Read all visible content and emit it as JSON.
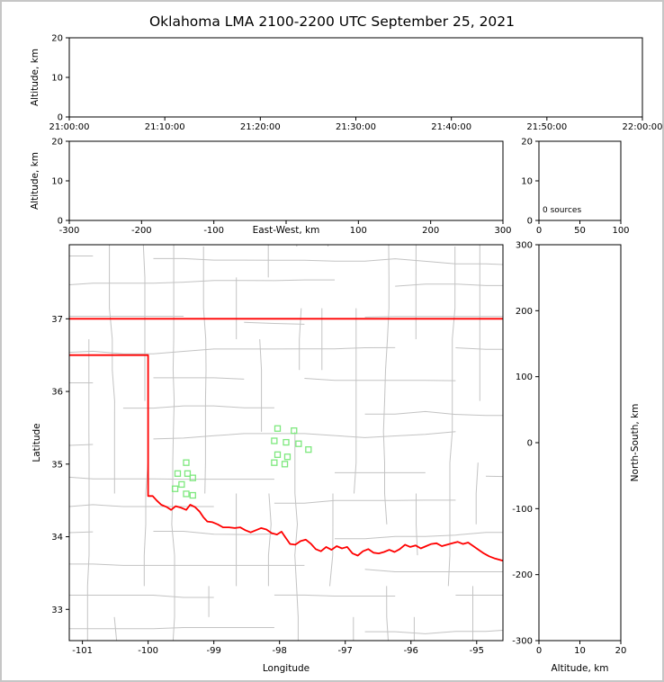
{
  "title": "Oklahoma LMA 2100-2200 UTC September 25, 2021",
  "chart_data": [
    {
      "id": "time_height",
      "type": "scatter",
      "description": "Altitude versus time panel (empty, no sources)",
      "xlabel": "",
      "ylabel": "Altitude, km",
      "xlim": [
        0,
        60
      ],
      "ylim": [
        0,
        20
      ],
      "xticks": [
        {
          "v": 0,
          "t": "21:00:00"
        },
        {
          "v": 10,
          "t": "21:10:00"
        },
        {
          "v": 20,
          "t": "21:20:00"
        },
        {
          "v": 30,
          "t": "21:30:00"
        },
        {
          "v": 40,
          "t": "21:40:00"
        },
        {
          "v": 50,
          "t": "21:50:00"
        },
        {
          "v": 60,
          "t": "22:00:00"
        }
      ],
      "yticks": [
        {
          "v": 0,
          "t": "0"
        },
        {
          "v": 10,
          "t": "10"
        },
        {
          "v": 20,
          "t": "20"
        }
      ],
      "points": []
    },
    {
      "id": "ew_height",
      "type": "scatter",
      "description": "Altitude versus east-west distance panel (empty, no sources)",
      "xlabel": "East-West, km",
      "ylabel": "Altitude, km",
      "xlim": [
        -300,
        300
      ],
      "ylim": [
        0,
        20
      ],
      "xticks": [
        {
          "v": -300,
          "t": "-300"
        },
        {
          "v": -200,
          "t": "-200"
        },
        {
          "v": -100,
          "t": "-100"
        },
        {
          "v": 0,
          "t": ""
        },
        {
          "v": 100,
          "t": "100"
        },
        {
          "v": 200,
          "t": "200"
        },
        {
          "v": 300,
          "t": "300"
        }
      ],
      "yticks": [
        {
          "v": 0,
          "t": "0"
        },
        {
          "v": 10,
          "t": "10"
        },
        {
          "v": 20,
          "t": "20"
        }
      ],
      "points": []
    },
    {
      "id": "source_histogram",
      "type": "line",
      "description": "Altitude histogram of sources (empty)",
      "annotation": "0 sources",
      "xlim": [
        0,
        100
      ],
      "ylim": [
        0,
        20
      ],
      "xticks": [
        {
          "v": 0,
          "t": "0"
        },
        {
          "v": 50,
          "t": "50"
        },
        {
          "v": 100,
          "t": "100"
        }
      ],
      "yticks": [
        {
          "v": 0,
          "t": "0"
        },
        {
          "v": 10,
          "t": "10"
        },
        {
          "v": 20,
          "t": "20"
        }
      ],
      "points": []
    },
    {
      "id": "plan_view",
      "type": "scatter",
      "description": "Plan view map of Oklahoma with county lines, red state border, and green LMA station squares",
      "xlabel": "Longitude",
      "ylabel": "Latitude",
      "xlim": [
        -101.2,
        -94.6
      ],
      "ylim": [
        32.57,
        38.02
      ],
      "xticks": [
        {
          "v": -101,
          "t": "-101"
        },
        {
          "v": -100,
          "t": "-100"
        },
        {
          "v": -99,
          "t": "-99"
        },
        {
          "v": -98,
          "t": "-98"
        },
        {
          "v": -97,
          "t": "-97"
        },
        {
          "v": -96,
          "t": "-96"
        },
        {
          "v": -95,
          "t": "-95"
        }
      ],
      "yticks": [
        {
          "v": 33,
          "t": "33"
        },
        {
          "v": 34,
          "t": "34"
        },
        {
          "v": 35,
          "t": "35"
        },
        {
          "v": 36,
          "t": "36"
        },
        {
          "v": 37,
          "t": "37"
        }
      ],
      "stations": [
        [
          -99.42,
          35.02
        ],
        [
          -99.55,
          34.87
        ],
        [
          -99.4,
          34.87
        ],
        [
          -99.32,
          34.81
        ],
        [
          -99.49,
          34.72
        ],
        [
          -99.59,
          34.66
        ],
        [
          -99.42,
          34.59
        ],
        [
          -99.32,
          34.57
        ],
        [
          -98.03,
          35.49
        ],
        [
          -97.78,
          35.46
        ],
        [
          -98.08,
          35.32
        ],
        [
          -97.9,
          35.3
        ],
        [
          -97.71,
          35.28
        ],
        [
          -97.56,
          35.2
        ],
        [
          -98.03,
          35.13
        ],
        [
          -97.88,
          35.1
        ],
        [
          -98.08,
          35.02
        ],
        [
          -97.92,
          35.0
        ]
      ],
      "state_border": {
        "kansas_line": [
          [
            -101.2,
            37.0
          ],
          [
            -94.6,
            37.0
          ]
        ],
        "texas_border": [
          [
            -101.2,
            36.5
          ],
          [
            -100.0,
            36.5
          ],
          [
            -100.0,
            34.56
          ]
        ],
        "red_river": [
          [
            -100.0,
            34.56
          ],
          [
            -99.93,
            34.56
          ],
          [
            -99.87,
            34.5
          ],
          [
            -99.8,
            34.44
          ],
          [
            -99.72,
            34.41
          ],
          [
            -99.65,
            34.37
          ],
          [
            -99.58,
            34.42
          ],
          [
            -99.5,
            34.4
          ],
          [
            -99.42,
            34.37
          ],
          [
            -99.36,
            34.44
          ],
          [
            -99.29,
            34.41
          ],
          [
            -99.22,
            34.35
          ],
          [
            -99.16,
            34.27
          ],
          [
            -99.1,
            34.21
          ],
          [
            -99.02,
            34.2
          ],
          [
            -98.94,
            34.17
          ],
          [
            -98.86,
            34.13
          ],
          [
            -98.77,
            34.13
          ],
          [
            -98.68,
            34.12
          ],
          [
            -98.6,
            34.13
          ],
          [
            -98.52,
            34.09
          ],
          [
            -98.44,
            34.06
          ],
          [
            -98.36,
            34.09
          ],
          [
            -98.28,
            34.12
          ],
          [
            -98.2,
            34.1
          ],
          [
            -98.12,
            34.05
          ],
          [
            -98.04,
            34.03
          ],
          [
            -97.97,
            34.07
          ],
          [
            -97.91,
            33.99
          ],
          [
            -97.84,
            33.9
          ],
          [
            -97.76,
            33.89
          ],
          [
            -97.68,
            33.94
          ],
          [
            -97.6,
            33.96
          ],
          [
            -97.52,
            33.9
          ],
          [
            -97.45,
            33.83
          ],
          [
            -97.37,
            33.8
          ],
          [
            -97.29,
            33.86
          ],
          [
            -97.21,
            33.82
          ],
          [
            -97.13,
            33.87
          ],
          [
            -97.05,
            33.84
          ],
          [
            -96.97,
            33.86
          ],
          [
            -96.89,
            33.77
          ],
          [
            -96.81,
            33.74
          ],
          [
            -96.73,
            33.8
          ],
          [
            -96.65,
            33.83
          ],
          [
            -96.57,
            33.78
          ],
          [
            -96.49,
            33.77
          ],
          [
            -96.41,
            33.79
          ],
          [
            -96.33,
            33.82
          ],
          [
            -96.25,
            33.79
          ],
          [
            -96.17,
            33.83
          ],
          [
            -96.09,
            33.89
          ],
          [
            -96.01,
            33.86
          ],
          [
            -95.93,
            33.88
          ],
          [
            -95.85,
            33.84
          ],
          [
            -95.77,
            33.87
          ],
          [
            -95.69,
            33.9
          ],
          [
            -95.61,
            33.91
          ],
          [
            -95.53,
            33.87
          ],
          [
            -95.45,
            33.89
          ],
          [
            -95.37,
            33.91
          ],
          [
            -95.29,
            33.93
          ],
          [
            -95.21,
            33.9
          ],
          [
            -95.13,
            33.92
          ],
          [
            -95.05,
            33.87
          ],
          [
            -94.97,
            33.82
          ],
          [
            -94.89,
            33.77
          ],
          [
            -94.81,
            33.73
          ],
          [
            -94.72,
            33.7
          ],
          [
            -94.6,
            33.67
          ]
        ]
      },
      "colors": {
        "stations": "#7de87d",
        "border": "#ff0000",
        "counties": "#c3c3c3"
      }
    },
    {
      "id": "ns_height",
      "type": "scatter",
      "description": "North-south distance versus altitude panel (empty, no sources)",
      "xlabel": "Altitude, km",
      "ylabel": "North-South, km",
      "xlim": [
        0,
        20
      ],
      "ylim": [
        -300,
        300
      ],
      "xticks": [
        {
          "v": 0,
          "t": "0"
        },
        {
          "v": 10,
          "t": "10"
        },
        {
          "v": 20,
          "t": "20"
        }
      ],
      "yticks": [
        {
          "v": -300,
          "t": "-300"
        },
        {
          "v": -200,
          "t": "-200"
        },
        {
          "v": -100,
          "t": "-100"
        },
        {
          "v": 0,
          "t": "0"
        },
        {
          "v": 100,
          "t": "100"
        },
        {
          "v": 200,
          "t": "200"
        },
        {
          "v": 300,
          "t": "300"
        }
      ],
      "points": []
    }
  ]
}
